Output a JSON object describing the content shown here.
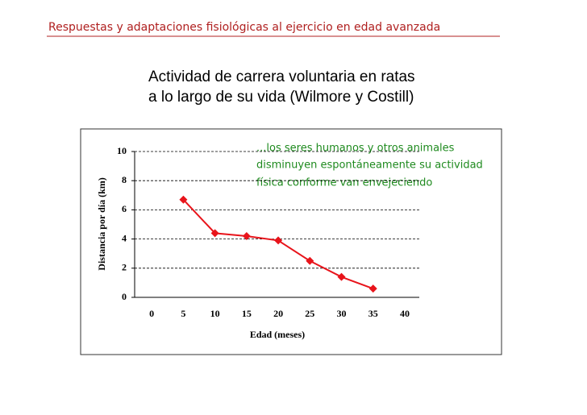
{
  "header": "Respuestas y adaptaciones fisiológicas al ejercicio en edad avanzada",
  "chart_data": {
    "type": "line",
    "title": [
      "Actividad de carrera voluntaria en ratas",
      "a lo largo de su vida (Wilmore y Costill)"
    ],
    "annotation": [
      "...los seres humanos y otros animales",
      "disminuyen espontáneamente su actividad",
      "física conforme van envejeciendo"
    ],
    "x_label": "Edad (meses)",
    "y_label": "Distancia por día (km)",
    "series": [
      {
        "name": "Distancia",
        "color": "#e8141b",
        "x": [
          5,
          10,
          15,
          20,
          25,
          30,
          35
        ],
        "values": [
          6.7,
          4.4,
          4.2,
          3.9,
          2.5,
          1.4,
          0.6
        ]
      }
    ],
    "xlim": [
      -2.7,
      42.3
    ],
    "xticks": [
      0,
      5,
      10,
      15,
      20,
      25,
      30,
      35,
      40
    ],
    "ylim": [
      0,
      10
    ],
    "yticks": [
      0,
      2,
      4,
      6,
      8,
      10
    ],
    "grid": true
  }
}
